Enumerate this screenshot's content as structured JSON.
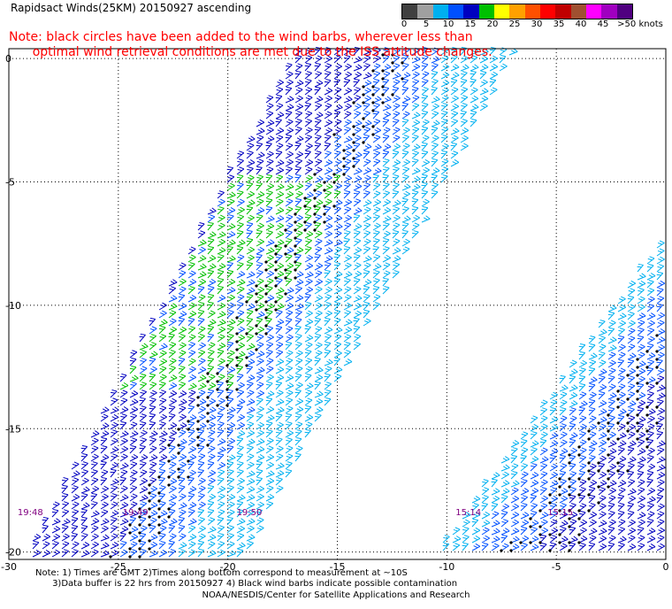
{
  "title": "Rapidsact Winds(25KM) 20150927 ascending",
  "note_line1": "Note: black circles have been added to the wind barbs, wherever less than",
  "note_line2": "      optimal wind retrieval conditions are met due to the ISS attitude changes.",
  "colorbar": {
    "labels": [
      "0",
      "5",
      "10",
      "15",
      "20",
      "25",
      "30",
      "35",
      "40",
      "45",
      ">50 knots"
    ],
    "colors": [
      "#404040",
      "#a0a0a0",
      "#00b0f0",
      "#0050ff",
      "#0000c0",
      "#00c000",
      "#ffff00",
      "#ffa000",
      "#ff5000",
      "#ff0000",
      "#c00000",
      "#a05030",
      "#ff00ff",
      "#a000c0",
      "#500080"
    ]
  },
  "map": {
    "lat_labels": [
      "0",
      "-5",
      "-10",
      "-15",
      "-20"
    ],
    "lon_labels": [
      "-30",
      "-25",
      "-20",
      "-15",
      "-10",
      "-5",
      "0"
    ],
    "lat_values": [
      0,
      -5,
      -10,
      -15,
      -20
    ],
    "lon_values": [
      -30,
      -25,
      -20,
      -15,
      -10,
      -5,
      0
    ],
    "lat_range": [
      -20.3,
      0.4
    ],
    "lon_range": [
      -30,
      0
    ],
    "time_labels": [
      {
        "label": "19:48",
        "lon": -29.6
      },
      {
        "label": "19:49",
        "lon": -24.8
      },
      {
        "label": "19:50",
        "lon": -19.6
      },
      {
        "label": "15:14",
        "lon": -9.6
      },
      {
        "label": "15:15",
        "lon": -5.4
      }
    ],
    "barb_colors": {
      "light": "#00b0f0",
      "medium": "#0050ff",
      "dark": "#0000c0",
      "green": "#00c000",
      "flag": "#000000"
    },
    "grid": "dotted"
  },
  "footnote_line1": "Note: 1) Times are GMT 2)Times along bottom correspond to measurement at ~10S",
  "footnote_line2": "      3)Data buffer is 22 hrs from 20150927 4) Black wind barbs indicate possible contamination",
  "credit": "NOAA/NESDIS/Center for Satellite Applications and Research"
}
